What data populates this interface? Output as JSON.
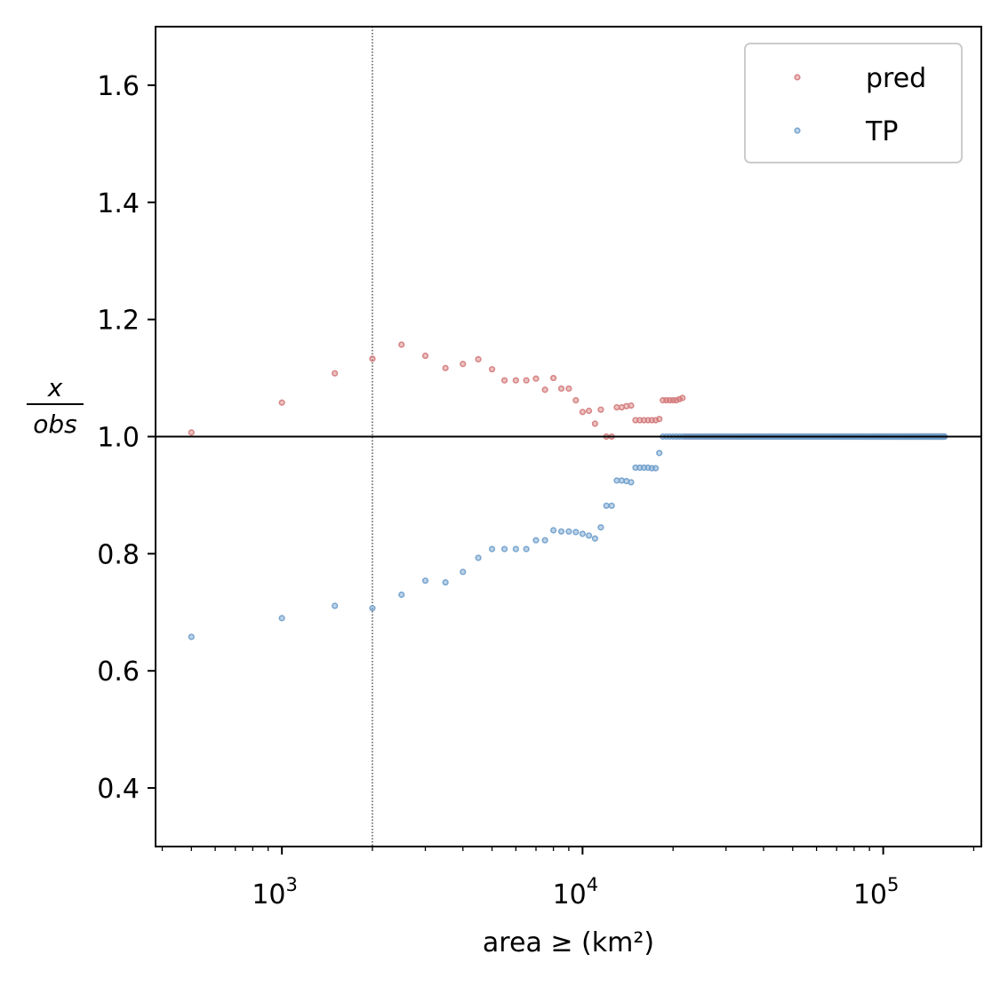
{
  "chart_data": {
    "type": "scatter",
    "xlabel": "area ≥ (km²)",
    "ylabel_numerator": "x",
    "ylabel_denominator": "obs",
    "xscale": "log",
    "xlim": [
      380,
      212000
    ],
    "ylim": [
      0.3,
      1.7
    ],
    "yticks": [
      {
        "value": 0.4,
        "label": "0.4"
      },
      {
        "value": 0.6,
        "label": "0.6"
      },
      {
        "value": 0.8,
        "label": "0.8"
      },
      {
        "value": 1.0,
        "label": "1.0"
      },
      {
        "value": 1.2,
        "label": "1.2"
      },
      {
        "value": 1.4,
        "label": "1.4"
      },
      {
        "value": 1.6,
        "label": "1.6"
      }
    ],
    "xticks": [
      {
        "value": 1000,
        "base": "10",
        "exp": "3"
      },
      {
        "value": 10000,
        "base": "10",
        "exp": "4"
      },
      {
        "value": 100000,
        "base": "10",
        "exp": "5"
      }
    ],
    "reference_line_y": 1.0,
    "threshold_line_x": 2000,
    "legend_position": "top-right",
    "grid": false,
    "series": [
      {
        "name": "pred",
        "color": "#d47a7a",
        "points": [
          [
            500,
            1.007
          ],
          [
            1000,
            1.058
          ],
          [
            1500,
            1.108
          ],
          [
            2000,
            1.133
          ],
          [
            2500,
            1.157
          ],
          [
            3000,
            1.138
          ],
          [
            3500,
            1.117
          ],
          [
            4000,
            1.124
          ],
          [
            4500,
            1.132
          ],
          [
            5000,
            1.115
          ],
          [
            5500,
            1.096
          ],
          [
            6000,
            1.096
          ],
          [
            6500,
            1.096
          ],
          [
            7000,
            1.099
          ],
          [
            7500,
            1.08
          ],
          [
            8000,
            1.1
          ],
          [
            8500,
            1.082
          ],
          [
            9000,
            1.082
          ],
          [
            9500,
            1.062
          ],
          [
            10000,
            1.042
          ],
          [
            10500,
            1.044
          ],
          [
            11000,
            1.022
          ],
          [
            11500,
            1.046
          ],
          [
            12000,
            1.0
          ],
          [
            12500,
            1.0
          ],
          [
            13000,
            1.05
          ],
          [
            13500,
            1.05
          ],
          [
            14000,
            1.052
          ],
          [
            14500,
            1.053
          ],
          [
            15000,
            1.028
          ],
          [
            15500,
            1.028
          ],
          [
            16000,
            1.028
          ],
          [
            16500,
            1.028
          ],
          [
            17000,
            1.028
          ],
          [
            17500,
            1.028
          ],
          [
            18000,
            1.03
          ],
          [
            18500,
            1.062
          ],
          [
            19000,
            1.062
          ],
          [
            19500,
            1.062
          ],
          [
            20000,
            1.062
          ],
          [
            20500,
            1.062
          ],
          [
            21000,
            1.064
          ],
          [
            21500,
            1.066
          ]
        ],
        "tail": {
          "x_start": 22000,
          "x_end": 160000,
          "step": 500,
          "y": 1.0
        }
      },
      {
        "name": "TP",
        "color": "#6f9fcc",
        "points": [
          [
            500,
            0.658
          ],
          [
            1000,
            0.69
          ],
          [
            1500,
            0.711
          ],
          [
            2000,
            0.707
          ],
          [
            2500,
            0.73
          ],
          [
            3000,
            0.754
          ],
          [
            3500,
            0.751
          ],
          [
            4000,
            0.769
          ],
          [
            4500,
            0.793
          ],
          [
            5000,
            0.808
          ],
          [
            5500,
            0.808
          ],
          [
            6000,
            0.808
          ],
          [
            6500,
            0.808
          ],
          [
            7000,
            0.823
          ],
          [
            7500,
            0.823
          ],
          [
            8000,
            0.84
          ],
          [
            8500,
            0.838
          ],
          [
            9000,
            0.838
          ],
          [
            9500,
            0.837
          ],
          [
            10000,
            0.834
          ],
          [
            10500,
            0.831
          ],
          [
            11000,
            0.826
          ],
          [
            11500,
            0.845
          ],
          [
            12000,
            0.882
          ],
          [
            12500,
            0.882
          ],
          [
            13000,
            0.925
          ],
          [
            13500,
            0.925
          ],
          [
            14000,
            0.924
          ],
          [
            14500,
            0.922
          ],
          [
            15000,
            0.947
          ],
          [
            15500,
            0.947
          ],
          [
            16000,
            0.947
          ],
          [
            16500,
            0.947
          ],
          [
            17000,
            0.946
          ],
          [
            17500,
            0.946
          ],
          [
            18000,
            0.972
          ],
          [
            18500,
            1.0
          ],
          [
            19000,
            1.0
          ],
          [
            19500,
            1.0
          ],
          [
            20000,
            1.0
          ],
          [
            20500,
            1.0
          ],
          [
            21000,
            1.0
          ],
          [
            21500,
            1.0
          ]
        ],
        "tail": {
          "x_start": 22000,
          "x_end": 160000,
          "step": 500,
          "y": 1.0
        }
      }
    ]
  }
}
